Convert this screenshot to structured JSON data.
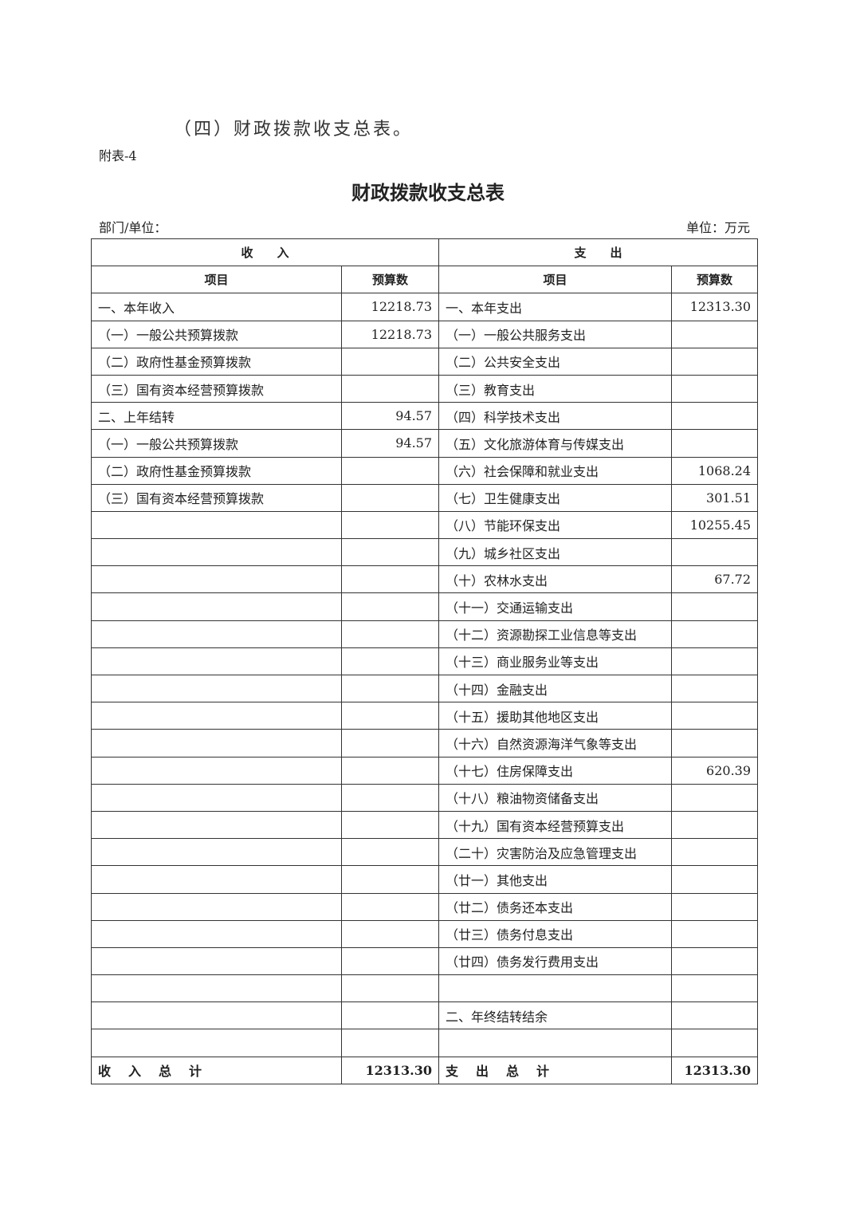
{
  "section_title": "（四）财政拨款收支总表。",
  "appendix_label": "附表-4",
  "title": "财政拨款收支总表",
  "department_label": "部门/单位：",
  "unit_label": "单位：万元",
  "header": {
    "income": "收　　入",
    "expense": "支　　出",
    "item": "项目",
    "budget": "预算数"
  },
  "rows": [
    {
      "income_item": "一、本年收入",
      "income_value": "12218.73",
      "expense_item": "一、本年支出",
      "expense_value": "12313.30"
    },
    {
      "income_item": "（一）一般公共预算拨款",
      "income_value": "12218.73",
      "expense_item": "（一）一般公共服务支出",
      "expense_value": ""
    },
    {
      "income_item": "（二）政府性基金预算拨款",
      "income_value": "",
      "expense_item": "（二）公共安全支出",
      "expense_value": ""
    },
    {
      "income_item": "（三）国有资本经营预算拨款",
      "income_value": "",
      "expense_item": "（三）教育支出",
      "expense_value": ""
    },
    {
      "income_item": "二、上年结转",
      "income_value": "94.57",
      "expense_item": "（四）科学技术支出",
      "expense_value": ""
    },
    {
      "income_item": "（一）一般公共预算拨款",
      "income_value": "94.57",
      "expense_item": "（五）文化旅游体育与传媒支出",
      "expense_value": ""
    },
    {
      "income_item": "（二）政府性基金预算拨款",
      "income_value": "",
      "expense_item": "（六）社会保障和就业支出",
      "expense_value": "1068.24"
    },
    {
      "income_item": "（三）国有资本经营预算拨款",
      "income_value": "",
      "expense_item": "（七）卫生健康支出",
      "expense_value": "301.51"
    },
    {
      "income_item": "",
      "income_value": "",
      "expense_item": "（八）节能环保支出",
      "expense_value": "10255.45"
    },
    {
      "income_item": "",
      "income_value": "",
      "expense_item": "（九）城乡社区支出",
      "expense_value": ""
    },
    {
      "income_item": "",
      "income_value": "",
      "expense_item": "（十）农林水支出",
      "expense_value": "67.72"
    },
    {
      "income_item": "",
      "income_value": "",
      "expense_item": "（十一）交通运输支出",
      "expense_value": ""
    },
    {
      "income_item": "",
      "income_value": "",
      "expense_item": "（十二）资源勘探工业信息等支出",
      "expense_value": ""
    },
    {
      "income_item": "",
      "income_value": "",
      "expense_item": "（十三）商业服务业等支出",
      "expense_value": ""
    },
    {
      "income_item": "",
      "income_value": "",
      "expense_item": "（十四）金融支出",
      "expense_value": ""
    },
    {
      "income_item": "",
      "income_value": "",
      "expense_item": "（十五）援助其他地区支出",
      "expense_value": ""
    },
    {
      "income_item": "",
      "income_value": "",
      "expense_item": "（十六）自然资源海洋气象等支出",
      "expense_value": ""
    },
    {
      "income_item": "",
      "income_value": "",
      "expense_item": "（十七）住房保障支出",
      "expense_value": "620.39"
    },
    {
      "income_item": "",
      "income_value": "",
      "expense_item": "（十八）粮油物资储备支出",
      "expense_value": ""
    },
    {
      "income_item": "",
      "income_value": "",
      "expense_item": "（十九）国有资本经营预算支出",
      "expense_value": ""
    },
    {
      "income_item": "",
      "income_value": "",
      "expense_item": "（二十）灾害防治及应急管理支出",
      "expense_value": ""
    },
    {
      "income_item": "",
      "income_value": "",
      "expense_item": "（廿一）其他支出",
      "expense_value": ""
    },
    {
      "income_item": "",
      "income_value": "",
      "expense_item": "（廿二）债务还本支出",
      "expense_value": ""
    },
    {
      "income_item": "",
      "income_value": "",
      "expense_item": "（廿三）债务付息支出",
      "expense_value": ""
    },
    {
      "income_item": "",
      "income_value": "",
      "expense_item": "（廿四）债务发行费用支出",
      "expense_value": ""
    },
    {
      "income_item": "",
      "income_value": "",
      "expense_item": "",
      "expense_value": ""
    },
    {
      "income_item": "",
      "income_value": "",
      "expense_item": "二、年终结转结余",
      "expense_value": ""
    },
    {
      "income_item": "",
      "income_value": "",
      "expense_item": "",
      "expense_value": ""
    }
  ],
  "totals": {
    "income_label": "收入总计",
    "income_value": "12313.30",
    "expense_label": "支出总计",
    "expense_value": "12313.30"
  }
}
